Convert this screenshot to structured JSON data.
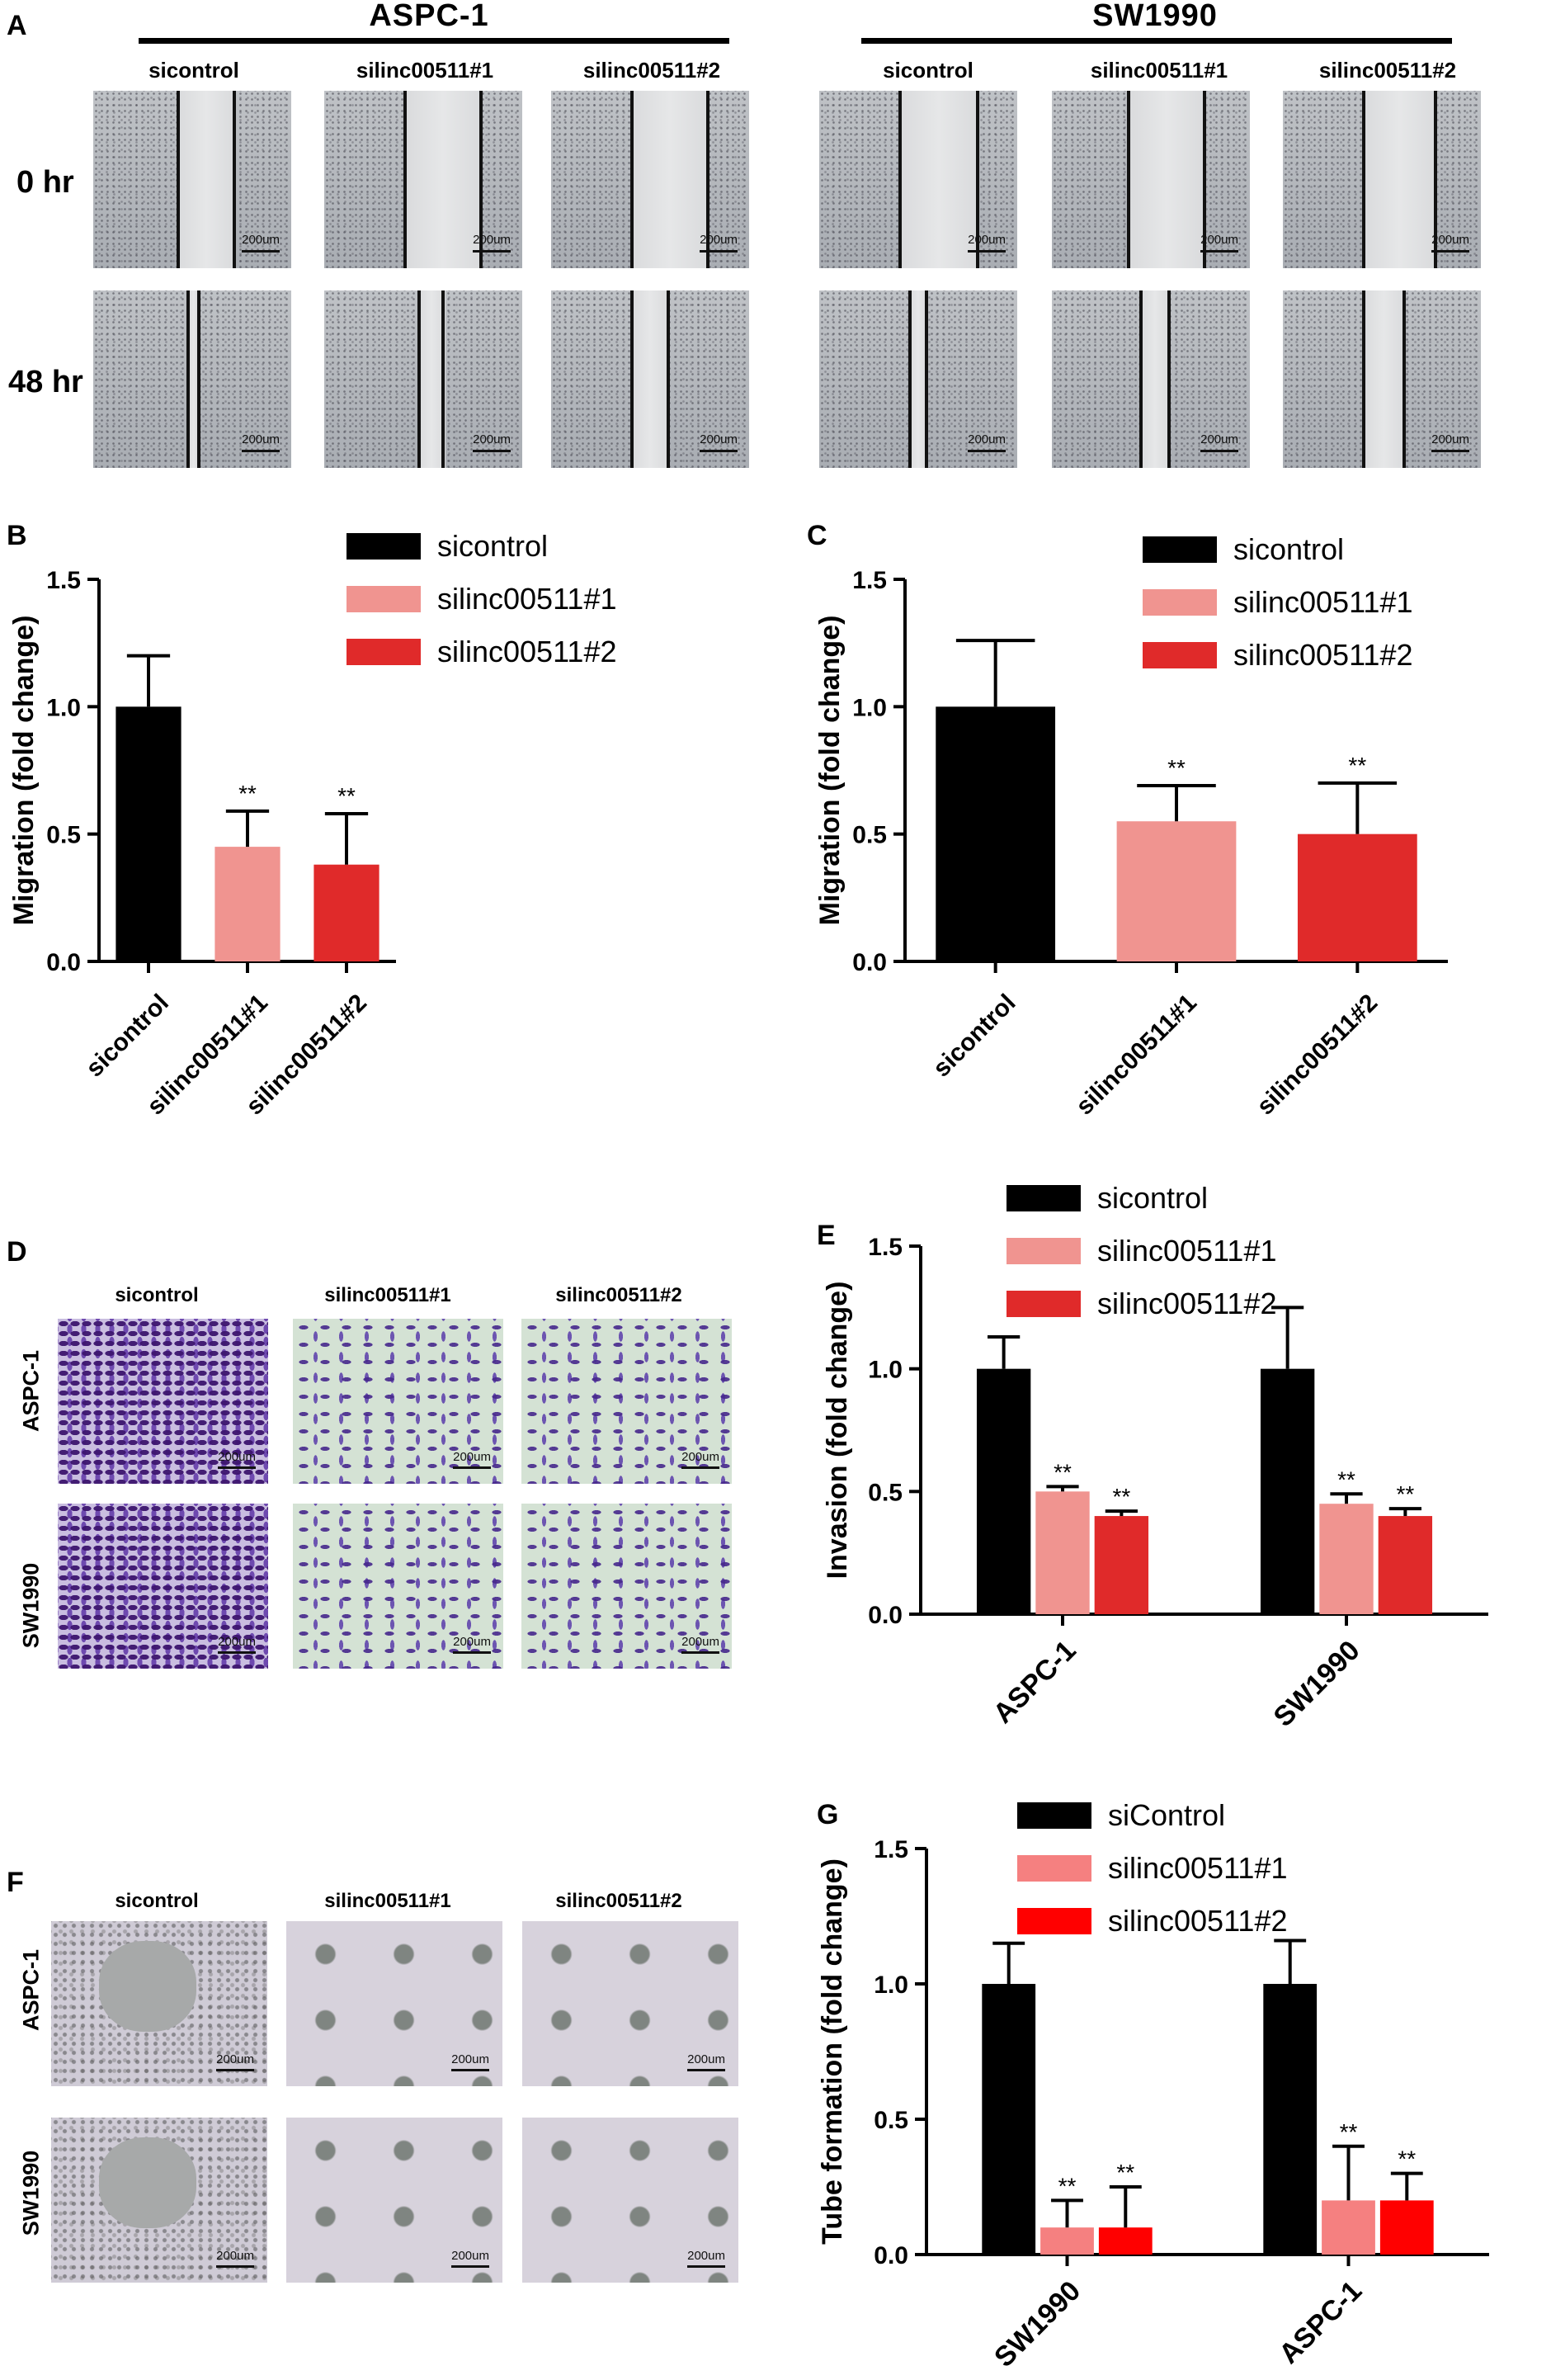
{
  "panels": {
    "A": "A",
    "B": "B",
    "C": "C",
    "D": "D",
    "E": "E",
    "F": "F",
    "G": "G"
  },
  "panel_a": {
    "groups": [
      "ASPC-1",
      "SW1990"
    ],
    "conditions": [
      "sicontrol",
      "silinc00511#1",
      "silinc00511#2"
    ],
    "times": [
      "0 hr",
      "48 hr"
    ],
    "scale": "200um"
  },
  "panel_d": {
    "conditions": [
      "sicontrol",
      "silinc00511#1",
      "silinc00511#2"
    ],
    "rows": [
      "ASPC-1",
      "SW1990"
    ],
    "scale": "200um"
  },
  "panel_f": {
    "conditions": [
      "sicontrol",
      "silinc00511#1",
      "silinc00511#2"
    ],
    "rows": [
      "ASPC-1",
      "SW1990"
    ],
    "scale": "200um"
  },
  "colors": {
    "control": "#000000",
    "si1": "#f09490",
    "si2": "#e02a2a",
    "si1_g": "#f58080",
    "si2_g": "#ff0000"
  },
  "chart_data": [
    {
      "id": "B",
      "type": "bar",
      "ylabel": "Migration (fold change)",
      "ylim": [
        0,
        1.5
      ],
      "yticks": [
        "0.0",
        "0.5",
        "1.0",
        "1.5"
      ],
      "categories": [
        "sicontrol",
        "silinc00511#1",
        "silinc00511#2"
      ],
      "values": [
        1.0,
        0.45,
        0.38
      ],
      "errors": [
        0.2,
        0.14,
        0.2
      ],
      "annotations": [
        "",
        "**",
        "**"
      ],
      "legend": [
        "sicontrol",
        "silinc00511#1",
        "silinc00511#2"
      ],
      "legend_position": "top-right"
    },
    {
      "id": "C",
      "type": "bar",
      "ylabel": "Migration (fold change)",
      "ylim": [
        0,
        1.5
      ],
      "yticks": [
        "0.0",
        "0.5",
        "1.0",
        "1.5"
      ],
      "categories": [
        "sicontrol",
        "silinc00511#1",
        "silinc00511#2"
      ],
      "values": [
        1.0,
        0.55,
        0.5
      ],
      "errors": [
        0.26,
        0.14,
        0.2
      ],
      "annotations": [
        "",
        "**",
        "**"
      ],
      "legend": [
        "sicontrol",
        "silinc00511#1",
        "silinc00511#2"
      ],
      "legend_position": "top-right"
    },
    {
      "id": "E",
      "type": "bar",
      "ylabel": "Invasion (fold change)",
      "ylim": [
        0,
        1.5
      ],
      "yticks": [
        "0.0",
        "0.5",
        "1.0",
        "1.5"
      ],
      "categories": [
        "ASPC-1",
        "SW1990"
      ],
      "series": [
        {
          "name": "sicontrol",
          "values": [
            1.0,
            1.0
          ],
          "errors": [
            0.13,
            0.25
          ],
          "annotations": [
            "",
            ""
          ]
        },
        {
          "name": "silinc00511#1",
          "values": [
            0.5,
            0.45
          ],
          "errors": [
            0.02,
            0.04
          ],
          "annotations": [
            "**",
            "**"
          ]
        },
        {
          "name": "silinc00511#2",
          "values": [
            0.4,
            0.4
          ],
          "errors": [
            0.02,
            0.03
          ],
          "annotations": [
            "**",
            "**"
          ]
        }
      ],
      "legend_position": "top"
    },
    {
      "id": "G",
      "type": "bar",
      "ylabel": "Tube formation (fold change)",
      "ylim": [
        0,
        1.5
      ],
      "yticks": [
        "0.0",
        "0.5",
        "1.0",
        "1.5"
      ],
      "categories": [
        "SW1990",
        "ASPC-1"
      ],
      "series": [
        {
          "name": "siControl",
          "values": [
            1.0,
            1.0
          ],
          "errors": [
            0.15,
            0.16
          ],
          "annotations": [
            "",
            ""
          ]
        },
        {
          "name": "silinc00511#1",
          "values": [
            0.1,
            0.2
          ],
          "errors": [
            0.1,
            0.2
          ],
          "annotations": [
            "**",
            "**"
          ]
        },
        {
          "name": "silinc00511#2",
          "values": [
            0.1,
            0.2
          ],
          "errors": [
            0.15,
            0.1
          ],
          "annotations": [
            "**",
            "**"
          ]
        }
      ],
      "legend_position": "top"
    }
  ]
}
